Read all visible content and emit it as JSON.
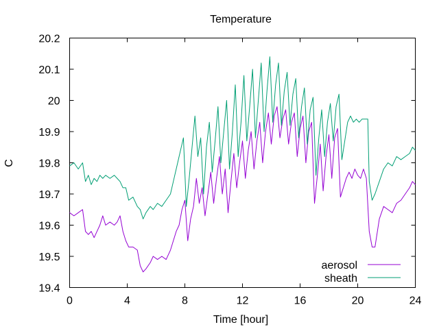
{
  "chart_data": {
    "type": "line",
    "title": "Temperature",
    "xlabel": "Time [hour]",
    "ylabel": "C",
    "xlim": [
      0,
      24
    ],
    "ylim": [
      19.4,
      20.2
    ],
    "x_ticks": [
      0,
      4,
      8,
      12,
      16,
      20,
      24
    ],
    "y_ticks": [
      19.4,
      19.5,
      19.6,
      19.7,
      19.8,
      19.9,
      20,
      20.1,
      20.2
    ],
    "x_tick_labels": [
      "0",
      "4",
      "8",
      "12",
      "16",
      "20",
      "24"
    ],
    "y_tick_labels": [
      "19.4",
      "19.5",
      "19.6",
      "19.7",
      "19.8",
      "19.9",
      "20",
      "20.1",
      "20.2"
    ],
    "grid": false,
    "legend_position": "bottom-right",
    "series": [
      {
        "name": "aerosol",
        "color": "#9400d3",
        "points": [
          [
            0,
            19.64
          ],
          [
            0.3,
            19.63
          ],
          [
            0.6,
            19.64
          ],
          [
            0.9,
            19.65
          ],
          [
            1.1,
            19.58
          ],
          [
            1.3,
            19.57
          ],
          [
            1.5,
            19.58
          ],
          [
            1.7,
            19.56
          ],
          [
            1.9,
            19.58
          ],
          [
            2.1,
            19.6
          ],
          [
            2.3,
            19.63
          ],
          [
            2.5,
            19.6
          ],
          [
            2.8,
            19.61
          ],
          [
            3.1,
            19.6
          ],
          [
            3.3,
            19.61
          ],
          [
            3.5,
            19.63
          ],
          [
            3.7,
            19.58
          ],
          [
            3.9,
            19.55
          ],
          [
            4.1,
            19.53
          ],
          [
            4.4,
            19.53
          ],
          [
            4.7,
            19.52
          ],
          [
            4.9,
            19.47
          ],
          [
            5.1,
            19.45
          ],
          [
            5.3,
            19.46
          ],
          [
            5.6,
            19.48
          ],
          [
            5.8,
            19.5
          ],
          [
            6.1,
            19.49
          ],
          [
            6.4,
            19.5
          ],
          [
            6.7,
            19.49
          ],
          [
            7.0,
            19.52
          ],
          [
            7.2,
            19.55
          ],
          [
            7.4,
            19.58
          ],
          [
            7.6,
            19.6
          ],
          [
            7.8,
            19.65
          ],
          [
            8.0,
            19.68
          ],
          [
            8.2,
            19.55
          ],
          [
            8.4,
            19.62
          ],
          [
            8.6,
            19.66
          ],
          [
            8.8,
            19.75
          ],
          [
            9.0,
            19.67
          ],
          [
            9.2,
            19.72
          ],
          [
            9.4,
            19.63
          ],
          [
            9.6,
            19.7
          ],
          [
            9.8,
            19.77
          ],
          [
            10.0,
            19.67
          ],
          [
            10.2,
            19.75
          ],
          [
            10.4,
            19.82
          ],
          [
            10.6,
            19.7
          ],
          [
            10.8,
            19.78
          ],
          [
            11.0,
            19.64
          ],
          [
            11.2,
            19.74
          ],
          [
            11.4,
            19.83
          ],
          [
            11.6,
            19.72
          ],
          [
            11.8,
            19.8
          ],
          [
            12.0,
            19.87
          ],
          [
            12.2,
            19.75
          ],
          [
            12.4,
            19.84
          ],
          [
            12.6,
            19.9
          ],
          [
            12.8,
            19.78
          ],
          [
            13.0,
            19.87
          ],
          [
            13.2,
            19.93
          ],
          [
            13.4,
            19.8
          ],
          [
            13.6,
            19.9
          ],
          [
            13.8,
            19.96
          ],
          [
            14.0,
            19.86
          ],
          [
            14.2,
            19.95
          ],
          [
            14.4,
            19.98
          ],
          [
            14.6,
            19.88
          ],
          [
            14.8,
            19.94
          ],
          [
            15.0,
            19.97
          ],
          [
            15.2,
            19.86
          ],
          [
            15.4,
            19.93
          ],
          [
            15.6,
            19.96
          ],
          [
            15.8,
            19.82
          ],
          [
            16.0,
            19.91
          ],
          [
            16.2,
            19.95
          ],
          [
            16.4,
            19.8
          ],
          [
            16.6,
            19.9
          ],
          [
            16.8,
            19.93
          ],
          [
            17.0,
            19.67
          ],
          [
            17.2,
            19.76
          ],
          [
            17.4,
            19.86
          ],
          [
            17.6,
            19.71
          ],
          [
            17.8,
            19.82
          ],
          [
            18.0,
            19.89
          ],
          [
            18.2,
            19.75
          ],
          [
            18.4,
            19.88
          ],
          [
            18.6,
            19.91
          ],
          [
            18.8,
            19.69
          ],
          [
            19.0,
            19.72
          ],
          [
            19.2,
            19.75
          ],
          [
            19.4,
            19.77
          ],
          [
            19.6,
            19.75
          ],
          [
            19.8,
            19.78
          ],
          [
            20.0,
            19.76
          ],
          [
            20.2,
            19.75
          ],
          [
            20.4,
            19.78
          ],
          [
            20.6,
            19.75
          ],
          [
            20.8,
            19.58
          ],
          [
            21.0,
            19.53
          ],
          [
            21.2,
            19.53
          ],
          [
            21.5,
            19.62
          ],
          [
            21.8,
            19.66
          ],
          [
            22.1,
            19.65
          ],
          [
            22.4,
            19.64
          ],
          [
            22.7,
            19.67
          ],
          [
            23.0,
            19.68
          ],
          [
            23.3,
            19.7
          ],
          [
            23.6,
            19.72
          ],
          [
            23.8,
            19.74
          ],
          [
            24.0,
            19.73
          ]
        ]
      },
      {
        "name": "sheath",
        "color": "#009e73",
        "points": [
          [
            0,
            19.79
          ],
          [
            0.3,
            19.8
          ],
          [
            0.6,
            19.78
          ],
          [
            0.9,
            19.8
          ],
          [
            1.1,
            19.74
          ],
          [
            1.3,
            19.76
          ],
          [
            1.5,
            19.73
          ],
          [
            1.7,
            19.75
          ],
          [
            1.9,
            19.74
          ],
          [
            2.1,
            19.76
          ],
          [
            2.3,
            19.75
          ],
          [
            2.5,
            19.76
          ],
          [
            2.8,
            19.75
          ],
          [
            3.1,
            19.76
          ],
          [
            3.3,
            19.75
          ],
          [
            3.5,
            19.74
          ],
          [
            3.7,
            19.72
          ],
          [
            3.9,
            19.72
          ],
          [
            4.1,
            19.68
          ],
          [
            4.4,
            19.69
          ],
          [
            4.7,
            19.66
          ],
          [
            4.9,
            19.65
          ],
          [
            5.1,
            19.62
          ],
          [
            5.3,
            19.64
          ],
          [
            5.6,
            19.66
          ],
          [
            5.8,
            19.65
          ],
          [
            6.1,
            19.67
          ],
          [
            6.4,
            19.66
          ],
          [
            6.7,
            19.68
          ],
          [
            7.0,
            19.7
          ],
          [
            7.2,
            19.74
          ],
          [
            7.4,
            19.78
          ],
          [
            7.6,
            19.82
          ],
          [
            7.8,
            19.86
          ],
          [
            7.9,
            19.88
          ],
          [
            8.1,
            19.66
          ],
          [
            8.3,
            19.75
          ],
          [
            8.5,
            19.85
          ],
          [
            8.7,
            19.95
          ],
          [
            8.9,
            19.82
          ],
          [
            9.1,
            19.88
          ],
          [
            9.3,
            19.7
          ],
          [
            9.5,
            19.85
          ],
          [
            9.7,
            19.93
          ],
          [
            9.9,
            19.77
          ],
          [
            10.1,
            19.87
          ],
          [
            10.3,
            19.98
          ],
          [
            10.5,
            19.8
          ],
          [
            10.7,
            19.9
          ],
          [
            10.9,
            20.0
          ],
          [
            11.1,
            19.78
          ],
          [
            11.3,
            19.9
          ],
          [
            11.5,
            20.05
          ],
          [
            11.7,
            19.82
          ],
          [
            11.9,
            19.93
          ],
          [
            12.1,
            20.08
          ],
          [
            12.3,
            19.87
          ],
          [
            12.5,
            19.98
          ],
          [
            12.7,
            20.1
          ],
          [
            12.9,
            19.88
          ],
          [
            13.1,
            20.0
          ],
          [
            13.3,
            20.12
          ],
          [
            13.5,
            19.9
          ],
          [
            13.7,
            20.03
          ],
          [
            13.9,
            20.14
          ],
          [
            14.1,
            19.93
          ],
          [
            14.3,
            20.05
          ],
          [
            14.5,
            20.12
          ],
          [
            14.7,
            19.92
          ],
          [
            14.9,
            20.03
          ],
          [
            15.1,
            20.09
          ],
          [
            15.3,
            19.92
          ],
          [
            15.5,
            20.02
          ],
          [
            15.7,
            20.07
          ],
          [
            15.9,
            19.88
          ],
          [
            16.1,
            19.98
          ],
          [
            16.3,
            20.04
          ],
          [
            16.5,
            19.86
          ],
          [
            16.7,
            19.97
          ],
          [
            16.9,
            20.01
          ],
          [
            17.1,
            19.76
          ],
          [
            17.3,
            19.88
          ],
          [
            17.5,
            19.97
          ],
          [
            17.7,
            19.82
          ],
          [
            17.9,
            19.93
          ],
          [
            18.1,
            19.99
          ],
          [
            18.3,
            19.87
          ],
          [
            18.5,
            19.98
          ],
          [
            18.7,
            20.02
          ],
          [
            18.9,
            19.81
          ],
          [
            19.1,
            19.87
          ],
          [
            19.3,
            19.93
          ],
          [
            19.5,
            19.95
          ],
          [
            19.7,
            19.93
          ],
          [
            19.9,
            19.94
          ],
          [
            20.1,
            19.93
          ],
          [
            20.3,
            19.94
          ],
          [
            20.5,
            19.94
          ],
          [
            20.7,
            19.94
          ],
          [
            20.8,
            19.74
          ],
          [
            21.0,
            19.68
          ],
          [
            21.2,
            19.7
          ],
          [
            21.5,
            19.74
          ],
          [
            21.8,
            19.78
          ],
          [
            22.1,
            19.8
          ],
          [
            22.4,
            19.79
          ],
          [
            22.7,
            19.82
          ],
          [
            23.0,
            19.81
          ],
          [
            23.3,
            19.82
          ],
          [
            23.6,
            19.83
          ],
          [
            23.8,
            19.85
          ],
          [
            24.0,
            19.84
          ]
        ]
      }
    ]
  }
}
